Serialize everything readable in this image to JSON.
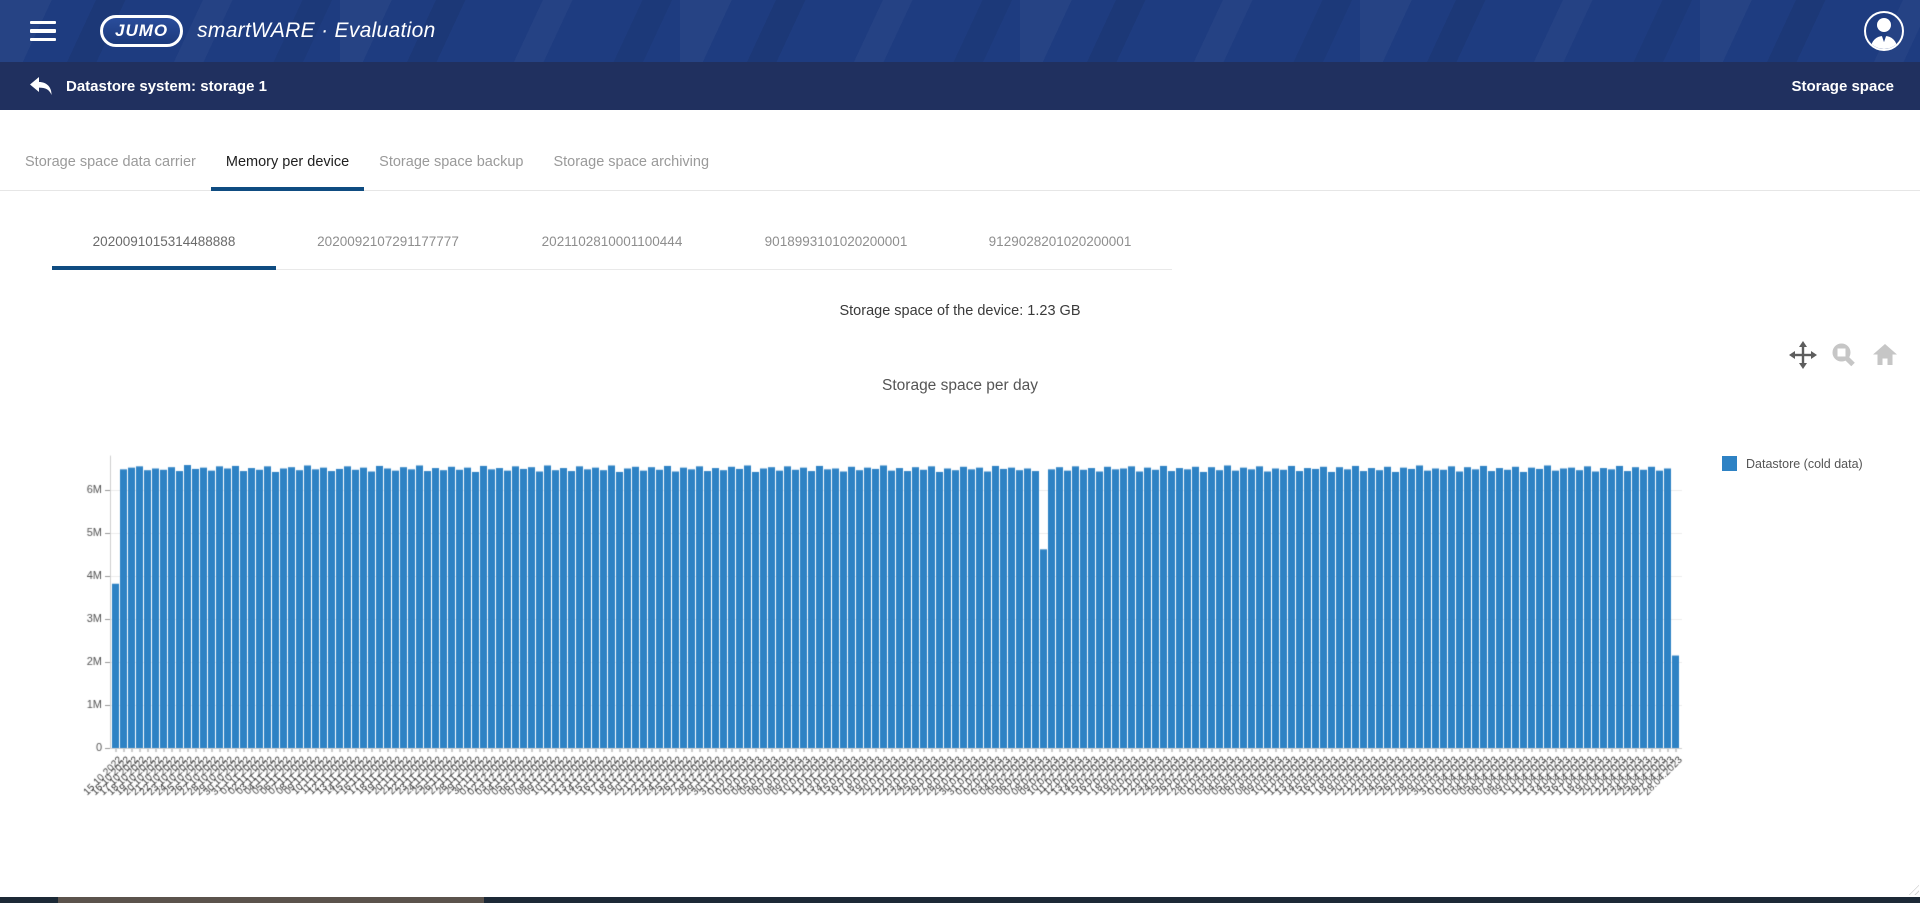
{
  "colors": {
    "header_bg": "#1e3c80",
    "subheader_bg": "#20305f",
    "accent_underline": "#0f4c81",
    "bar_blue": "#2e82c4"
  },
  "header": {
    "logo_text": "JUMO",
    "product_title": "smartWARE · Evaluation",
    "menu_icon": "hamburger-menu-icon",
    "account_icon": "user-avatar-icon"
  },
  "subheader": {
    "back_icon": "back-arrow-icon",
    "title": "Datastore system: storage 1",
    "right_label": "Storage space"
  },
  "tabs": {
    "items": [
      {
        "label": "Storage space data carrier",
        "active": false
      },
      {
        "label": "Memory per device",
        "active": true
      },
      {
        "label": "Storage space backup",
        "active": false
      },
      {
        "label": "Storage space archiving",
        "active": false
      }
    ]
  },
  "device_tabs": {
    "items": [
      {
        "label": "2020091015314488888",
        "active": true
      },
      {
        "label": "2020092107291177777",
        "active": false
      },
      {
        "label": "2021102810001100444",
        "active": false
      },
      {
        "label": "9018993101020200001",
        "active": false
      },
      {
        "label": "9129028201020200001",
        "active": false
      }
    ]
  },
  "chart_header": {
    "device_info": "Storage space of the device: 1.23 GB",
    "title": "Storage space per day"
  },
  "plot_toolbar": {
    "tools": [
      {
        "name": "pan",
        "active": true
      },
      {
        "name": "box-zoom",
        "active": false
      },
      {
        "name": "reset-home",
        "active": false
      }
    ]
  },
  "legend": {
    "label": "Datastore (cold data)"
  },
  "chart_data": {
    "type": "bar",
    "title": "Storage space per day",
    "xlabel": "",
    "ylabel": "",
    "grid": "horizontal-light",
    "legend_position": "top-right-outside",
    "x_axis": {
      "start_date": "15.10.2022",
      "interval_days": 1,
      "count": 196,
      "label_format": "DD.MM.YYYY",
      "label_rotation_deg": -45
    },
    "y_axis": {
      "unit": "M",
      "ylim": [
        0,
        6.9
      ],
      "ticks": [
        {
          "value": 0,
          "label": "0"
        },
        {
          "value": 1,
          "label": "1M"
        },
        {
          "value": 2,
          "label": "2M"
        },
        {
          "value": 3,
          "label": "3M"
        },
        {
          "value": 4,
          "label": "4M"
        },
        {
          "value": 5,
          "label": "5M"
        },
        {
          "value": 6,
          "label": "6M"
        }
      ]
    },
    "series": [
      {
        "name": "Datastore (cold data)",
        "color": "#2e82c4",
        "values_unit": "M",
        "values": [
          3.82,
          6.48,
          6.52,
          6.55,
          6.46,
          6.5,
          6.47,
          6.53,
          6.44,
          6.58,
          6.49,
          6.52,
          6.45,
          6.55,
          6.5,
          6.56,
          6.44,
          6.51,
          6.47,
          6.55,
          6.42,
          6.5,
          6.53,
          6.46,
          6.57,
          6.48,
          6.52,
          6.44,
          6.49,
          6.55,
          6.47,
          6.52,
          6.43,
          6.56,
          6.5,
          6.45,
          6.53,
          6.48,
          6.57,
          6.44,
          6.51,
          6.46,
          6.54,
          6.47,
          6.52,
          6.42,
          6.56,
          6.48,
          6.51,
          6.45,
          6.55,
          6.49,
          6.53,
          6.43,
          6.57,
          6.46,
          6.51,
          6.44,
          6.55,
          6.48,
          6.52,
          6.46,
          6.57,
          6.42,
          6.5,
          6.54,
          6.45,
          6.53,
          6.47,
          6.56,
          6.43,
          6.52,
          6.48,
          6.55,
          6.44,
          6.51,
          6.46,
          6.54,
          6.49,
          6.57,
          6.42,
          6.5,
          6.53,
          6.45,
          6.55,
          6.47,
          6.52,
          6.44,
          6.56,
          6.48,
          6.5,
          6.43,
          6.54,
          6.46,
          6.52,
          6.49,
          6.57,
          6.45,
          6.51,
          6.44,
          6.53,
          6.47,
          6.55,
          6.42,
          6.5,
          6.46,
          6.54,
          6.48,
          6.52,
          6.43,
          6.56,
          6.49,
          6.52,
          6.46,
          6.5,
          6.44,
          4.62,
          6.48,
          6.53,
          6.45,
          6.55,
          6.47,
          6.51,
          6.43,
          6.54,
          6.48,
          6.5,
          6.55,
          6.43,
          6.52,
          6.47,
          6.56,
          6.44,
          6.51,
          6.48,
          6.54,
          6.42,
          6.53,
          6.46,
          6.57,
          6.45,
          6.52,
          6.48,
          6.55,
          6.43,
          6.5,
          6.47,
          6.56,
          6.44,
          6.51,
          6.49,
          6.54,
          6.42,
          6.53,
          6.48,
          6.56,
          6.44,
          6.51,
          6.46,
          6.54,
          6.42,
          6.52,
          6.49,
          6.57,
          6.45,
          6.5,
          6.47,
          6.55,
          6.43,
          6.53,
          6.48,
          6.56,
          6.44,
          6.51,
          6.47,
          6.54,
          6.42,
          6.52,
          6.49,
          6.57,
          6.45,
          6.5,
          6.52,
          6.46,
          6.55,
          6.43,
          6.51,
          6.48,
          6.56,
          6.44,
          6.53,
          6.47,
          6.54,
          6.45,
          6.5,
          2.15
        ]
      }
    ]
  }
}
